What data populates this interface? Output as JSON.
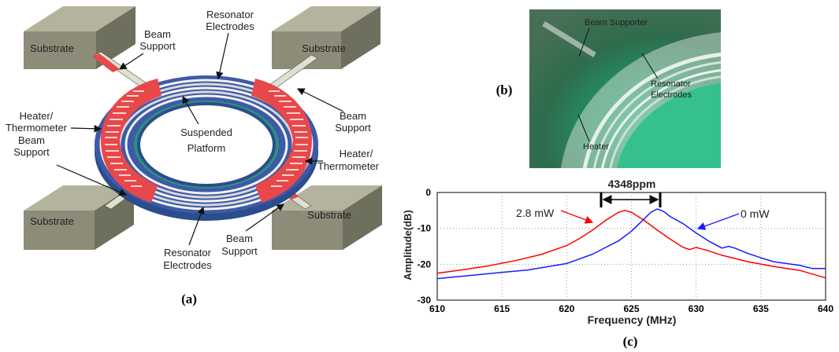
{
  "panel_a": {
    "caption": "(a)",
    "labels": {
      "substrate_tl": "Substrate",
      "substrate_tr": "Substrate",
      "substrate_bl": "Substrate",
      "substrate_br": "Substrate",
      "beam_support_top_1": "Beam",
      "beam_support_top_2": "Support",
      "resonator_top_1": "Resonator",
      "resonator_top_2": "Electrodes",
      "beam_support_right_1": "Beam",
      "beam_support_right_2": "Support",
      "heater_left_1": "Heater/",
      "heater_left_2": "Thermometer",
      "beam_support_left_1": "Beam",
      "beam_support_left_2": "Support",
      "platform_1": "Suspended",
      "platform_2": "Platform",
      "heater_right_1": "Heater/",
      "heater_right_2": "Thermometer",
      "resonator_bottom_1": "Resonator",
      "resonator_bottom_2": "Electrodes",
      "beam_support_bottom_1": "Beam",
      "beam_support_bottom_2": "Support"
    }
  },
  "panel_b": {
    "caption": "(b)",
    "labels": {
      "beam_supporter": "Beam Supporter",
      "resonator_1": "Resonator",
      "resonator_2": "Electrodes",
      "heater": "Heater"
    }
  },
  "panel_c": {
    "caption": "(c)",
    "annotation": "4348ppm",
    "series_label_red": "2.8 mW",
    "series_label_blue": "0 mW"
  },
  "colors": {
    "red_series": "#ff0000",
    "blue_series": "#1a1aff",
    "substrate": "#8c8c78",
    "heater": "#e8484a",
    "electrode": "#3d5aa8"
  },
  "chart_data": {
    "type": "line",
    "xlabel": "Frequency (MHz)",
    "ylabel": "Amplitude(dB)",
    "xlim": [
      610,
      640
    ],
    "ylim": [
      -30,
      0
    ],
    "xticks": [
      "610",
      "615",
      "620",
      "625",
      "630",
      "635",
      "640"
    ],
    "yticks": [
      "0",
      "-10",
      "-20",
      "-30"
    ],
    "grid": true,
    "series": [
      {
        "name": "2.8 mW",
        "color": "#ff0000",
        "x": [
          610,
          612,
          614,
          616,
          618,
          620,
          621,
          622,
          623,
          624,
          624.5,
          625,
          626,
          627,
          628,
          629,
          629.5,
          630,
          631,
          632,
          634,
          636,
          637,
          638,
          640
        ],
        "y": [
          -22.5,
          -21.5,
          -20.4,
          -19,
          -17.3,
          -14.8,
          -12.8,
          -10.5,
          -7.8,
          -5.5,
          -5,
          -5.5,
          -7.8,
          -10.5,
          -13,
          -15.3,
          -15.9,
          -15.3,
          -16.3,
          -17.5,
          -19.3,
          -20.6,
          -21.2,
          -21.7,
          -23.8
        ]
      },
      {
        "name": "0 mW",
        "color": "#1a1aff",
        "x": [
          610,
          614,
          617,
          620,
          622,
          624,
          625,
          626,
          626.5,
          627,
          627.5,
          628,
          629,
          630,
          631,
          632,
          632.5,
          633,
          634,
          635,
          636,
          638,
          639,
          640
        ],
        "y": [
          -24,
          -22.6,
          -21.6,
          -19.8,
          -17.2,
          -13.5,
          -10.8,
          -7.3,
          -5.5,
          -4.6,
          -5.3,
          -6.7,
          -8.7,
          -11.3,
          -13.6,
          -15.5,
          -15,
          -15.5,
          -17,
          -18.2,
          -19.3,
          -20.3,
          -21.2,
          -21.2
        ]
      }
    ]
  }
}
